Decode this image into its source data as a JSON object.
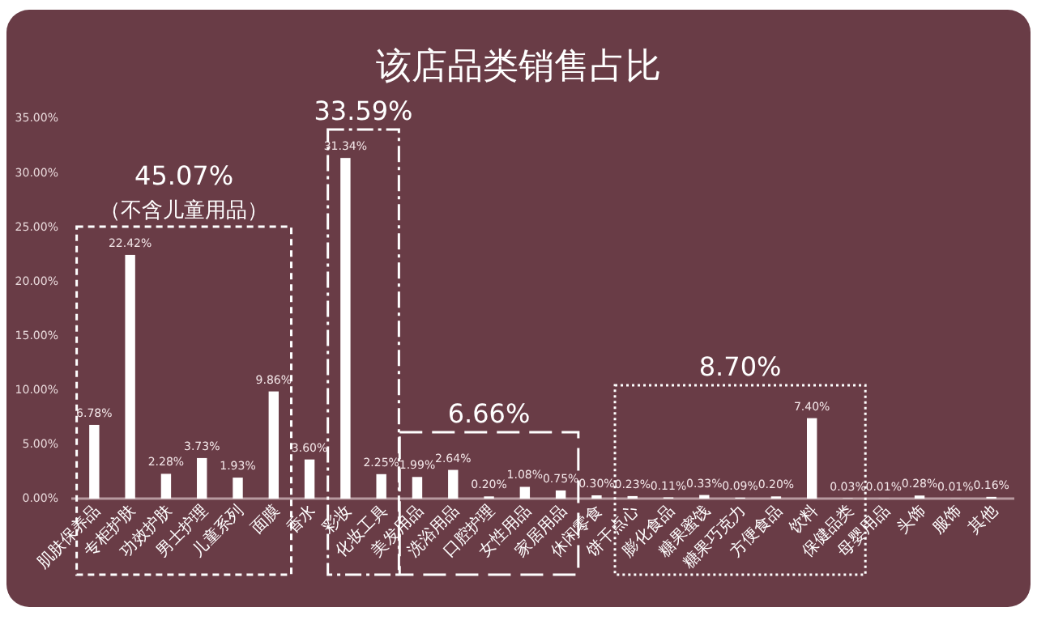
{
  "chart_data": {
    "type": "bar",
    "title": "该店品类销售占比",
    "categories": [
      "肌肤保养品",
      "专柜护肤",
      "功效护肤",
      "男士护理",
      "儿童系列",
      "面膜",
      "香水",
      "彩妆",
      "化妆工具",
      "美发用品",
      "洗浴用品",
      "口腔护理",
      "女性用品",
      "家居用品",
      "休闲零食",
      "饼干点心",
      "膨化食品",
      "糖果蜜饯",
      "糖果巧克力",
      "方便食品",
      "饮料",
      "保健品类",
      "母婴用品",
      "头饰",
      "服饰",
      "其他"
    ],
    "values": [
      6.78,
      22.42,
      2.28,
      3.73,
      1.93,
      9.86,
      3.6,
      31.34,
      2.25,
      1.99,
      2.64,
      0.2,
      1.08,
      0.75,
      0.3,
      0.23,
      0.11,
      0.33,
      0.09,
      0.2,
      7.4,
      0.03,
      0.01,
      0.28,
      0.01,
      0.16
    ],
    "value_labels": [
      "6.78%",
      "22.42%",
      "2.28%",
      "3.73%",
      "1.93%",
      "9.86%",
      "3.60%",
      "31.34%",
      "2.25%",
      "1.99%",
      "2.64%",
      "0.20%",
      "1.08%",
      "0.75%",
      "0.30%",
      "0.23%",
      "0.11%",
      "0.33%",
      "0.09%",
      "0.20%",
      "7.40%",
      "0.03%",
      "0.01%",
      "0.28%",
      "0.01%",
      "0.16%"
    ],
    "color": "#ffffff",
    "ylim": [
      0,
      35
    ],
    "yticks": [
      {
        "value": 0,
        "label": "0.00%"
      },
      {
        "value": 5,
        "label": "5.00%"
      },
      {
        "value": 10,
        "label": "10.00%"
      },
      {
        "value": 15,
        "label": "15.00%"
      },
      {
        "value": 20,
        "label": "20.00%"
      },
      {
        "value": 25,
        "label": "25.00%"
      },
      {
        "value": 30,
        "label": "30.00%"
      },
      {
        "value": 35,
        "label": "35.00%"
      }
    ],
    "grid": false,
    "annotations": [
      "45.07%",
      "（不含儿童用品）",
      "33.59%",
      "6.66%",
      "8.70%"
    ]
  }
}
